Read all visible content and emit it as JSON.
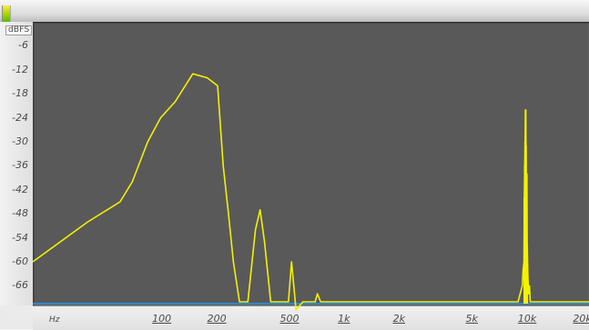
{
  "window": {
    "indicator_colors": [
      "#ffe94a",
      "#b8d800",
      "#4cc000"
    ]
  },
  "plot": {
    "background": "#595959",
    "grid": false,
    "line_color": "#f4f100",
    "baseline_color": "#2f87c8"
  },
  "y_axis": {
    "unit_label": "dBFS",
    "ticks": [
      {
        "label": "-6",
        "value": -6
      },
      {
        "label": "-12",
        "value": -12
      },
      {
        "label": "-18",
        "value": -18
      },
      {
        "label": "-24",
        "value": -24
      },
      {
        "label": "-30",
        "value": -30
      },
      {
        "label": "-36",
        "value": -36
      },
      {
        "label": "-42",
        "value": -42
      },
      {
        "label": "-48",
        "value": -48
      },
      {
        "label": "-54",
        "value": -54
      },
      {
        "label": "-60",
        "value": -60
      },
      {
        "label": "-66",
        "value": -66
      }
    ]
  },
  "x_axis": {
    "unit_label": "Hz",
    "ticks": [
      {
        "label": "100",
        "value": 100
      },
      {
        "label": "200",
        "value": 200
      },
      {
        "label": "500",
        "value": 500
      },
      {
        "label": "1k",
        "value": 1000
      },
      {
        "label": "2k",
        "value": 2000
      },
      {
        "label": "5k",
        "value": 5000
      },
      {
        "label": "10k",
        "value": 10000
      },
      {
        "label": "20k",
        "value": 20000
      }
    ]
  },
  "chart_data": {
    "type": "line",
    "title": "",
    "xlabel": "Hz",
    "ylabel": "dBFS",
    "xlim": [
      20,
      22000
    ],
    "ylim": [
      -70,
      0
    ],
    "x_scale": "log",
    "series": [
      {
        "color": "#f4f100",
        "x": [
          20,
          40,
          60,
          70,
          85,
          100,
          120,
          150,
          180,
          205,
          220,
          235,
          250,
          270,
          290,
          300,
          330,
          350,
          370,
          400,
          450,
          480,
          500,
          520,
          550,
          600,
          650,
          700,
          720,
          750,
          800,
          1000,
          2000,
          5000,
          9000,
          9500,
          9600,
          9700,
          9750,
          9800,
          9850,
          9900,
          9950,
          10000,
          10050,
          10100,
          10150,
          10200,
          10300,
          10400,
          10500,
          11000,
          12000,
          20000,
          22000
        ],
        "y": [
          -60,
          -50,
          -45,
          -40,
          -30,
          -24,
          -20,
          -13,
          -14,
          -16,
          -36,
          -48,
          -60,
          -70,
          -70,
          -70,
          -52,
          -47,
          -55,
          -70,
          -70,
          -70,
          -70,
          -60,
          -72,
          -70,
          -70,
          -70,
          -68,
          -70,
          -70,
          -70,
          -70,
          -70,
          -70,
          -66,
          -62,
          -60,
          -44,
          -36,
          -30,
          -22,
          -31,
          -48,
          -38,
          -56,
          -60,
          -64,
          -68,
          -66,
          -70,
          -70,
          -70,
          -70,
          -70
        ]
      }
    ]
  }
}
